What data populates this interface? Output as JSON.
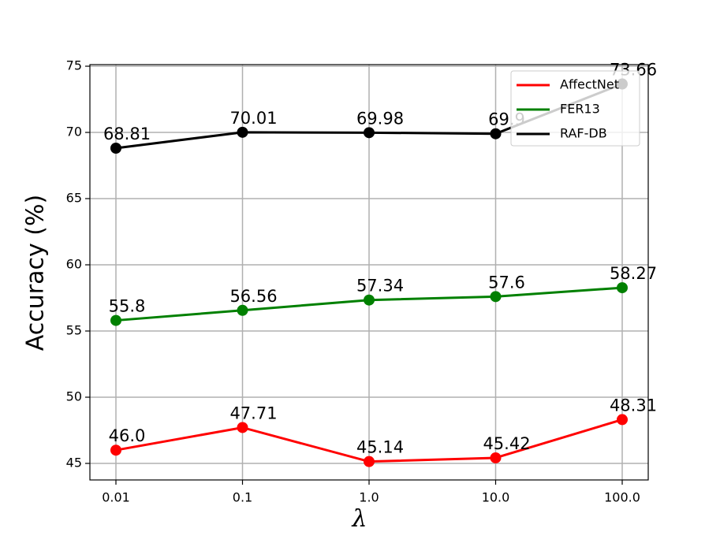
{
  "chart_data": {
    "type": "line",
    "xlabel": "λ",
    "ylabel": "Accuracy (%)",
    "categories": [
      "0.01",
      "0.1",
      "1.0",
      "10.0",
      "100.0"
    ],
    "series": [
      {
        "name": "AffectNet",
        "color": "#ff0000",
        "values": [
          46.0,
          47.71,
          45.14,
          45.42,
          48.31
        ],
        "value_labels": [
          "46.0",
          "47.71",
          "45.14",
          "45.42",
          "48.31"
        ]
      },
      {
        "name": "FER13",
        "color": "#008000",
        "values": [
          55.8,
          56.56,
          57.34,
          57.6,
          58.27
        ]
      },
      {
        "name": "RAF-DB",
        "color": "#000000",
        "values": [
          68.81,
          70.01,
          69.98,
          69.9,
          73.66
        ]
      }
    ],
    "ylim": [
      43.75,
      75.12
    ],
    "yticks": [
      45,
      50,
      55,
      60,
      65,
      70,
      75
    ],
    "grid": true,
    "legend": "upper right"
  }
}
